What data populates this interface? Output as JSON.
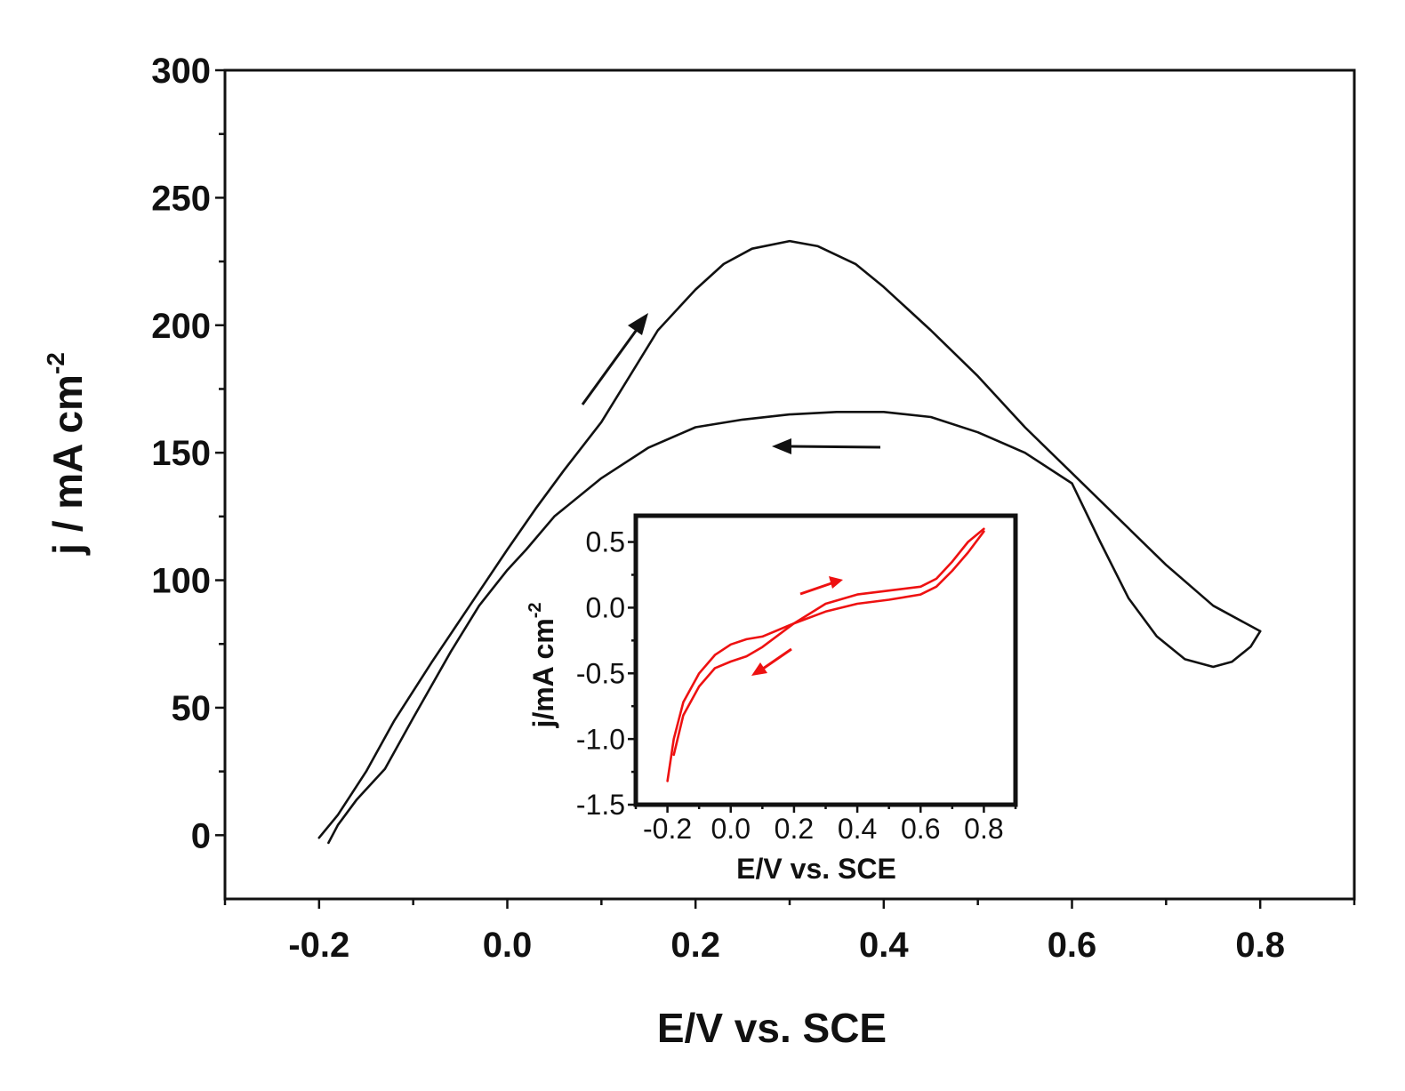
{
  "chart_data": [
    {
      "type": "line",
      "xlabel": "E/V vs. SCE",
      "ylabel": {
        "base": "j / mA cm",
        "sup": "-2"
      },
      "xlim": [
        -0.3,
        0.9
      ],
      "ylim": [
        -25,
        300
      ],
      "x_ticks": [
        -0.2,
        0.0,
        0.2,
        0.4,
        0.6,
        0.8
      ],
      "x_tick_labels": [
        "-0.2",
        "0.0",
        "0.2",
        "0.4",
        "0.6",
        "0.8"
      ],
      "y_ticks": [
        0,
        50,
        100,
        150,
        200,
        250,
        300
      ],
      "y_tick_labels": [
        "0",
        "50",
        "100",
        "150",
        "200",
        "250",
        "300"
      ],
      "color": "#111111",
      "series": [
        {
          "name": "forward scan",
          "x": [
            -0.2,
            -0.18,
            -0.15,
            -0.12,
            -0.08,
            -0.04,
            0.0,
            0.03,
            0.06,
            0.1,
            0.13,
            0.16,
            0.2,
            0.23,
            0.26,
            0.3,
            0.33,
            0.37,
            0.4,
            0.45,
            0.5,
            0.55,
            0.6,
            0.65,
            0.7,
            0.75,
            0.8
          ],
          "y": [
            -1,
            8,
            25,
            45,
            68,
            90,
            112,
            128,
            143,
            162,
            180,
            198,
            214,
            224,
            230,
            233,
            231,
            224,
            215,
            198,
            180,
            160,
            142,
            124,
            106,
            90,
            80
          ]
        },
        {
          "name": "reverse scan",
          "x": [
            0.8,
            0.79,
            0.77,
            0.75,
            0.72,
            0.69,
            0.66,
            0.63,
            0.6,
            0.55,
            0.5,
            0.45,
            0.4,
            0.35,
            0.3,
            0.25,
            0.2,
            0.15,
            0.1,
            0.05,
            0.02,
            0.0,
            -0.03,
            -0.06,
            -0.1,
            -0.13,
            -0.16,
            -0.18,
            -0.19
          ],
          "y": [
            80,
            74,
            68,
            66,
            69,
            78,
            93,
            115,
            138,
            150,
            158,
            164,
            166,
            166,
            165,
            163,
            160,
            152,
            140,
            125,
            112,
            104,
            90,
            72,
            46,
            26,
            14,
            4,
            -3
          ]
        }
      ],
      "annotations": [
        {
          "type": "arrow",
          "direction": "up-right",
          "meaning": "forward scan"
        },
        {
          "type": "arrow",
          "direction": "left",
          "meaning": "reverse scan"
        }
      ]
    },
    {
      "type": "line",
      "role": "inset",
      "xlabel": "E/V vs. SCE",
      "ylabel": {
        "base": "j/mA cm",
        "sup": "-2"
      },
      "xlim": [
        -0.3,
        0.9
      ],
      "ylim": [
        -1.5,
        0.7
      ],
      "x_ticks": [
        -0.2,
        0.0,
        0.2,
        0.4,
        0.6,
        0.8
      ],
      "x_tick_labels": [
        "-0.2",
        "0.0",
        "0.2",
        "0.4",
        "0.6",
        "0.8"
      ],
      "y_ticks": [
        0.5,
        0.0,
        -0.5,
        -1.0,
        -1.5
      ],
      "y_tick_labels": [
        "0.5",
        "0.0",
        "-0.5",
        "-1.0",
        "-1.5"
      ],
      "color": "#ee1111",
      "series": [
        {
          "name": "forward scan",
          "x": [
            -0.2,
            -0.18,
            -0.15,
            -0.1,
            -0.05,
            0.0,
            0.05,
            0.1,
            0.2,
            0.3,
            0.4,
            0.5,
            0.6,
            0.65,
            0.7,
            0.75,
            0.8
          ],
          "y": [
            -1.32,
            -1.0,
            -0.72,
            -0.5,
            -0.36,
            -0.28,
            -0.24,
            -0.22,
            -0.12,
            0.03,
            0.1,
            0.13,
            0.16,
            0.22,
            0.35,
            0.5,
            0.6
          ]
        },
        {
          "name": "reverse scan",
          "x": [
            0.8,
            0.75,
            0.7,
            0.65,
            0.6,
            0.5,
            0.4,
            0.3,
            0.2,
            0.1,
            0.05,
            0.0,
            -0.05,
            -0.1,
            -0.15,
            -0.18
          ],
          "y": [
            0.58,
            0.42,
            0.28,
            0.16,
            0.1,
            0.06,
            0.03,
            -0.03,
            -0.12,
            -0.3,
            -0.37,
            -0.41,
            -0.46,
            -0.6,
            -0.82,
            -1.12
          ]
        }
      ],
      "annotations": [
        {
          "type": "arrow",
          "direction": "up-right",
          "meaning": "forward scan"
        },
        {
          "type": "arrow",
          "direction": "down-left",
          "meaning": "reverse scan"
        }
      ]
    }
  ]
}
